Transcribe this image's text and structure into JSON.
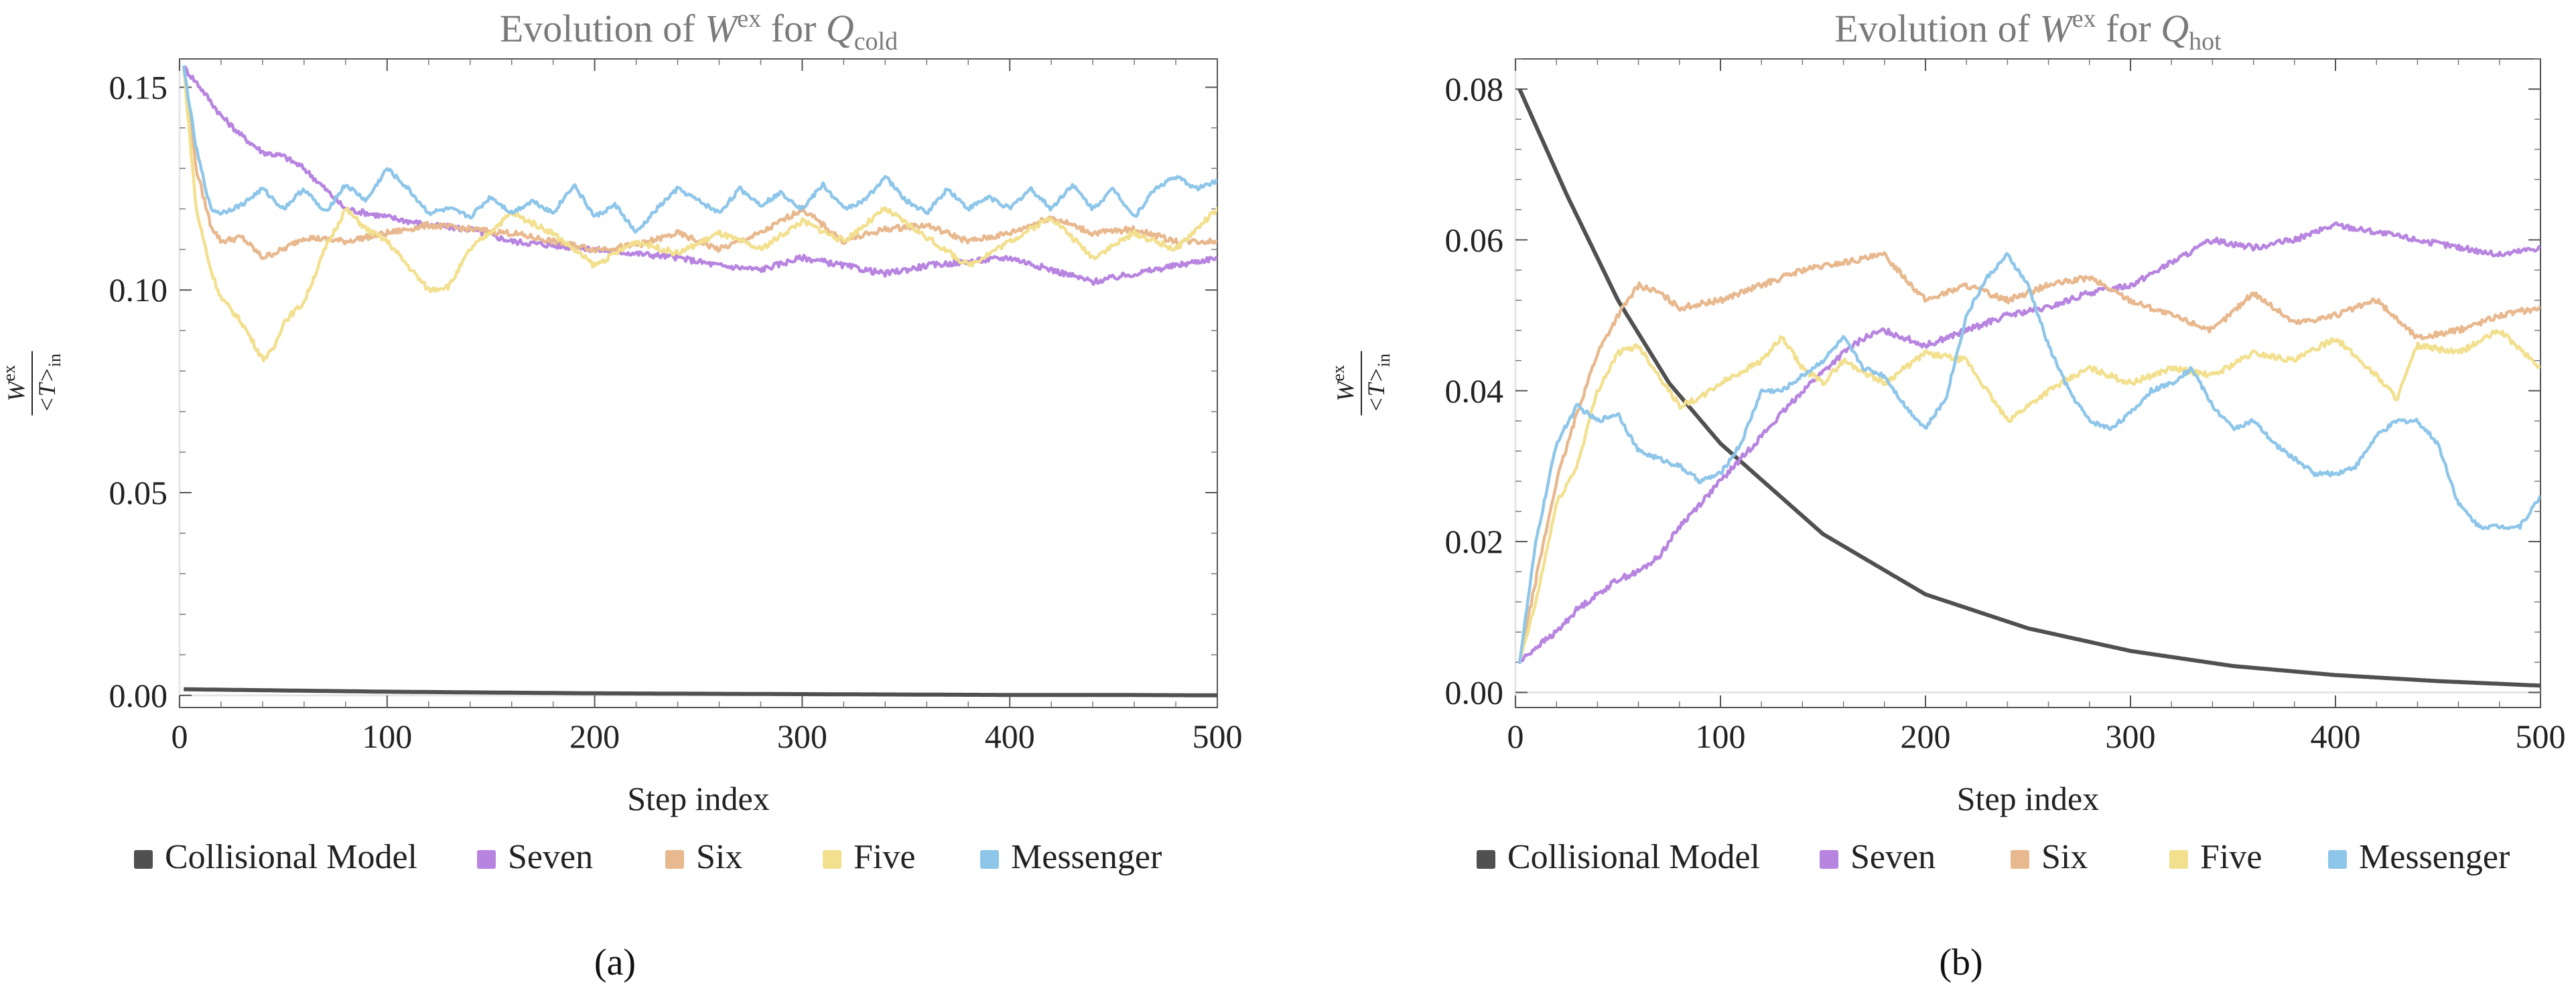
{
  "chart_data": [
    {
      "type": "line",
      "panel_label": "(a)",
      "title": "Evolution of W^ex for Q_cold",
      "title_parts": {
        "prefix": "Evolution of ",
        "sym": "W",
        "sup": "ex",
        "mid": " for ",
        "q": "Q",
        "sub": "cold"
      },
      "xlabel": "Step index",
      "ylabel": "W^ex / <T>_in",
      "ylabel_parts": {
        "num": "W",
        "num_sup": "ex",
        "den": "<T>",
        "den_sub": "in"
      },
      "xlim": [
        0,
        500
      ],
      "ylim": [
        -0.003,
        0.157
      ],
      "xticks": [
        0,
        100,
        200,
        300,
        400,
        500
      ],
      "yticks": [
        0.0,
        0.05,
        0.1,
        0.15
      ],
      "ytick_labels": [
        "0.00",
        "0.05",
        "0.10",
        "0.15"
      ],
      "legend": [
        "Collisional Model",
        "Seven",
        "Six",
        "Five",
        "Messenger"
      ],
      "series": [
        {
          "name": "Collisional Model",
          "color": "#505050",
          "x": [
            2,
            50,
            100,
            150,
            200,
            250,
            300,
            350,
            400,
            450,
            500
          ],
          "values": [
            0.0015,
            0.0012,
            0.0009,
            0.0007,
            0.0005,
            0.0004,
            0.0003,
            0.0002,
            0.0001,
            0.0001,
            0.0
          ]
        },
        {
          "name": "Seven",
          "color": "#b784e0",
          "x": [
            2,
            10,
            20,
            30,
            40,
            50,
            60,
            70,
            80,
            100,
            120,
            140,
            160,
            180,
            200,
            220,
            240,
            260,
            280,
            300,
            320,
            340,
            360,
            380,
            400,
            420,
            440,
            460,
            480,
            500
          ],
          "values": [
            0.155,
            0.15,
            0.143,
            0.138,
            0.134,
            0.133,
            0.13,
            0.125,
            0.12,
            0.118,
            0.116,
            0.115,
            0.112,
            0.111,
            0.11,
            0.109,
            0.108,
            0.106,
            0.105,
            0.108,
            0.106,
            0.104,
            0.106,
            0.107,
            0.108,
            0.105,
            0.102,
            0.104,
            0.106,
            0.108
          ]
        },
        {
          "name": "Six",
          "color": "#e8b88e",
          "x": [
            2,
            8,
            15,
            20,
            30,
            40,
            50,
            60,
            80,
            100,
            120,
            140,
            160,
            180,
            200,
            220,
            240,
            260,
            280,
            300,
            320,
            340,
            360,
            380,
            400,
            420,
            440,
            460,
            480,
            500
          ],
          "values": [
            0.155,
            0.13,
            0.116,
            0.112,
            0.113,
            0.108,
            0.11,
            0.113,
            0.112,
            0.114,
            0.116,
            0.115,
            0.114,
            0.112,
            0.11,
            0.111,
            0.114,
            0.11,
            0.114,
            0.12,
            0.112,
            0.115,
            0.116,
            0.112,
            0.114,
            0.118,
            0.114,
            0.115,
            0.112,
            0.112
          ]
        },
        {
          "name": "Five",
          "color": "#f2e08e",
          "x": [
            2,
            8,
            15,
            20,
            30,
            40,
            45,
            50,
            60,
            70,
            80,
            90,
            100,
            110,
            120,
            130,
            140,
            160,
            180,
            200,
            220,
            240,
            260,
            280,
            300,
            320,
            340,
            360,
            380,
            400,
            420,
            440,
            460,
            480,
            500
          ],
          "values": [
            0.155,
            0.12,
            0.105,
            0.098,
            0.092,
            0.083,
            0.085,
            0.092,
            0.097,
            0.11,
            0.12,
            0.115,
            0.112,
            0.106,
            0.1,
            0.101,
            0.11,
            0.119,
            0.114,
            0.106,
            0.112,
            0.109,
            0.114,
            0.11,
            0.117,
            0.112,
            0.12,
            0.113,
            0.106,
            0.112,
            0.118,
            0.108,
            0.114,
            0.11,
            0.12
          ]
        },
        {
          "name": "Messenger",
          "color": "#8ec6ea",
          "x": [
            2,
            8,
            15,
            20,
            30,
            40,
            50,
            60,
            70,
            80,
            90,
            100,
            110,
            120,
            130,
            140,
            150,
            160,
            170,
            180,
            190,
            200,
            210,
            220,
            230,
            240,
            250,
            260,
            270,
            280,
            290,
            300,
            310,
            320,
            330,
            340,
            350,
            360,
            370,
            380,
            390,
            400,
            410,
            420,
            430,
            440,
            450,
            460,
            470,
            480,
            490,
            500
          ],
          "values": [
            0.155,
            0.135,
            0.12,
            0.119,
            0.121,
            0.125,
            0.12,
            0.125,
            0.119,
            0.126,
            0.122,
            0.13,
            0.125,
            0.119,
            0.12,
            0.118,
            0.123,
            0.119,
            0.122,
            0.119,
            0.126,
            0.118,
            0.121,
            0.114,
            0.12,
            0.125,
            0.122,
            0.119,
            0.125,
            0.121,
            0.124,
            0.12,
            0.126,
            0.12,
            0.122,
            0.128,
            0.122,
            0.119,
            0.125,
            0.12,
            0.123,
            0.12,
            0.125,
            0.12,
            0.126,
            0.12,
            0.125,
            0.118,
            0.125,
            0.128,
            0.125,
            0.127
          ]
        }
      ]
    },
    {
      "type": "line",
      "panel_label": "(b)",
      "title": "Evolution of W^ex for Q_hot",
      "title_parts": {
        "prefix": "Evolution of ",
        "sym": "W",
        "sup": "ex",
        "mid": " for ",
        "q": "Q",
        "sub": "hot"
      },
      "xlabel": "Step index",
      "ylabel": "W^ex / <T>_in",
      "ylabel_parts": {
        "num": "W",
        "num_sup": "ex",
        "den": "<T>",
        "den_sub": "in"
      },
      "xlim": [
        0,
        500
      ],
      "ylim": [
        -0.002,
        0.084
      ],
      "xticks": [
        0,
        100,
        200,
        300,
        400,
        500
      ],
      "yticks": [
        0.0,
        0.02,
        0.04,
        0.06,
        0.08
      ],
      "ytick_labels": [
        "0.00",
        "0.02",
        "0.04",
        "0.06",
        "0.08"
      ],
      "legend": [
        "Collisional Model",
        "Seven",
        "Six",
        "Five",
        "Messenger"
      ],
      "series": [
        {
          "name": "Collisional Model",
          "color": "#505050",
          "x": [
            2,
            25,
            50,
            75,
            100,
            125,
            150,
            175,
            200,
            250,
            300,
            350,
            400,
            450,
            500
          ],
          "values": [
            0.08,
            0.066,
            0.052,
            0.041,
            0.033,
            0.027,
            0.021,
            0.017,
            0.013,
            0.0085,
            0.0055,
            0.0035,
            0.0023,
            0.0015,
            0.0009
          ]
        },
        {
          "name": "Seven",
          "color": "#b784e0",
          "x": [
            2,
            10,
            20,
            30,
            40,
            50,
            60,
            70,
            80,
            90,
            100,
            120,
            140,
            160,
            170,
            180,
            200,
            220,
            240,
            260,
            280,
            300,
            320,
            340,
            360,
            380,
            400,
            420,
            440,
            460,
            480,
            500
          ],
          "values": [
            0.004,
            0.006,
            0.008,
            0.011,
            0.013,
            0.015,
            0.016,
            0.018,
            0.022,
            0.025,
            0.028,
            0.034,
            0.04,
            0.045,
            0.047,
            0.048,
            0.046,
            0.048,
            0.05,
            0.051,
            0.053,
            0.054,
            0.057,
            0.06,
            0.059,
            0.06,
            0.062,
            0.061,
            0.06,
            0.059,
            0.058,
            0.059
          ]
        },
        {
          "name": "Six",
          "color": "#e8b88e",
          "x": [
            2,
            10,
            20,
            30,
            40,
            50,
            60,
            70,
            80,
            100,
            120,
            140,
            160,
            180,
            200,
            220,
            240,
            260,
            280,
            300,
            320,
            340,
            360,
            380,
            400,
            420,
            440,
            460,
            480,
            500
          ],
          "values": [
            0.004,
            0.015,
            0.028,
            0.037,
            0.045,
            0.05,
            0.054,
            0.053,
            0.051,
            0.052,
            0.054,
            0.056,
            0.057,
            0.058,
            0.052,
            0.054,
            0.052,
            0.054,
            0.055,
            0.052,
            0.05,
            0.048,
            0.053,
            0.049,
            0.05,
            0.052,
            0.047,
            0.048,
            0.05,
            0.051
          ]
        },
        {
          "name": "Five",
          "color": "#f2e08e",
          "x": [
            2,
            10,
            20,
            30,
            40,
            50,
            60,
            70,
            80,
            90,
            100,
            120,
            130,
            140,
            150,
            160,
            180,
            200,
            220,
            240,
            260,
            280,
            300,
            320,
            340,
            360,
            380,
            400,
            420,
            430,
            440,
            460,
            480,
            500
          ],
          "values": [
            0.004,
            0.012,
            0.025,
            0.03,
            0.04,
            0.045,
            0.046,
            0.042,
            0.038,
            0.039,
            0.041,
            0.044,
            0.047,
            0.043,
            0.041,
            0.044,
            0.041,
            0.045,
            0.044,
            0.036,
            0.04,
            0.043,
            0.041,
            0.043,
            0.042,
            0.045,
            0.044,
            0.047,
            0.042,
            0.039,
            0.046,
            0.045,
            0.048,
            0.043
          ]
        },
        {
          "name": "Messenger",
          "color": "#8ec6ea",
          "x": [
            2,
            10,
            20,
            30,
            40,
            50,
            60,
            70,
            80,
            90,
            100,
            110,
            120,
            130,
            140,
            150,
            160,
            170,
            180,
            190,
            200,
            210,
            220,
            230,
            240,
            250,
            260,
            270,
            280,
            290,
            300,
            310,
            320,
            330,
            340,
            350,
            360,
            370,
            380,
            390,
            400,
            410,
            420,
            430,
            440,
            450,
            460,
            470,
            480,
            490,
            500
          ],
          "values": [
            0.004,
            0.02,
            0.033,
            0.038,
            0.036,
            0.037,
            0.032,
            0.031,
            0.03,
            0.028,
            0.029,
            0.033,
            0.04,
            0.04,
            0.042,
            0.044,
            0.047,
            0.043,
            0.042,
            0.038,
            0.035,
            0.039,
            0.05,
            0.055,
            0.058,
            0.054,
            0.046,
            0.04,
            0.036,
            0.035,
            0.037,
            0.04,
            0.041,
            0.043,
            0.038,
            0.035,
            0.036,
            0.033,
            0.031,
            0.029,
            0.029,
            0.03,
            0.034,
            0.036,
            0.036,
            0.033,
            0.025,
            0.022,
            0.022,
            0.022,
            0.026
          ]
        }
      ]
    }
  ]
}
